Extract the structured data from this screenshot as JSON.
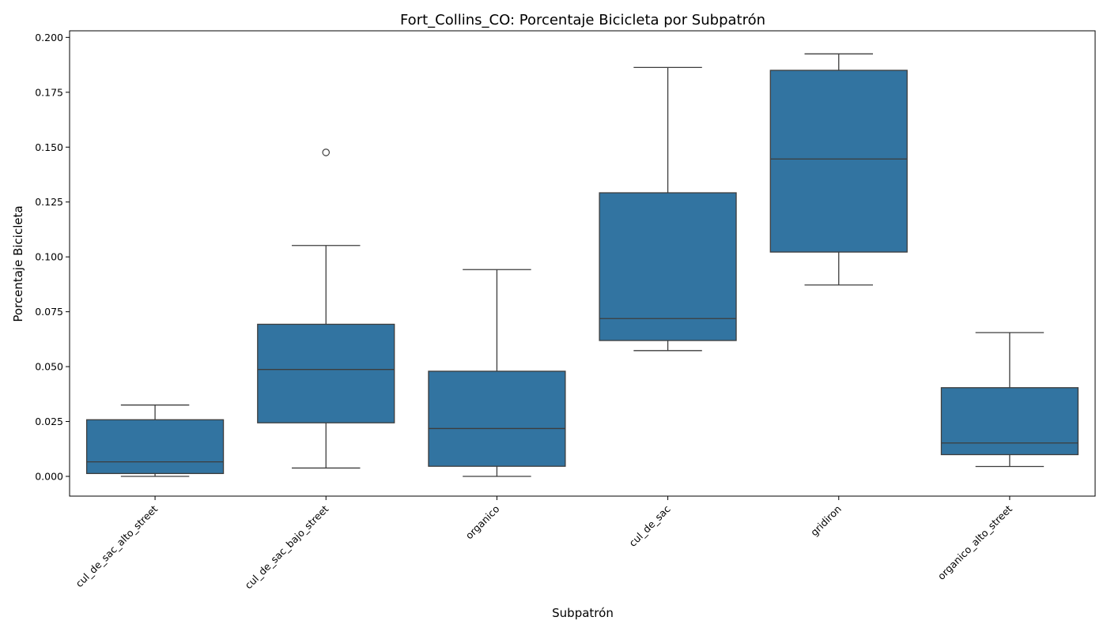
{
  "chart_data": {
    "type": "box",
    "title": "Fort_Collins_CO: Porcentaje Bicicleta por Subpatrón",
    "xlabel": "Subpatrón",
    "ylabel": "Porcentaje Bicicleta",
    "ylim": [
      -0.009,
      0.203
    ],
    "yticks": [
      0.0,
      0.025,
      0.05,
      0.075,
      0.1,
      0.125,
      0.15,
      0.175,
      0.2
    ],
    "ytick_labels": [
      "0.000",
      "0.025",
      "0.050",
      "0.075",
      "0.100",
      "0.125",
      "0.150",
      "0.175",
      "0.200"
    ],
    "categories": [
      "cul_de_sac_alto_street",
      "cul_de_sac_bajo_street",
      "organico",
      "cul_de_sac",
      "gridiron",
      "organico_alto_street"
    ],
    "boxes": [
      {
        "whisker_low": 0.0,
        "q1": 0.0013,
        "median": 0.0066,
        "q3": 0.0258,
        "whisker_high": 0.0325,
        "outliers": []
      },
      {
        "whisker_low": 0.0038,
        "q1": 0.0244,
        "median": 0.0487,
        "q3": 0.0693,
        "whisker_high": 0.1052,
        "outliers": [
          0.1476
        ]
      },
      {
        "whisker_low": 0.0,
        "q1": 0.0046,
        "median": 0.0218,
        "q3": 0.0479,
        "whisker_high": 0.0942,
        "outliers": []
      },
      {
        "whisker_low": 0.0573,
        "q1": 0.0619,
        "median": 0.0719,
        "q3": 0.1292,
        "whisker_high": 0.1863,
        "outliers": []
      },
      {
        "whisker_low": 0.0872,
        "q1": 0.1022,
        "median": 0.1446,
        "q3": 0.185,
        "whisker_high": 0.1925,
        "outliers": []
      },
      {
        "whisker_low": 0.0045,
        "q1": 0.0099,
        "median": 0.0152,
        "q3": 0.0404,
        "whisker_high": 0.0655,
        "outliers": []
      }
    ],
    "box_color": "#3274a1",
    "line_color": "#3d3d3d",
    "grid": false
  }
}
